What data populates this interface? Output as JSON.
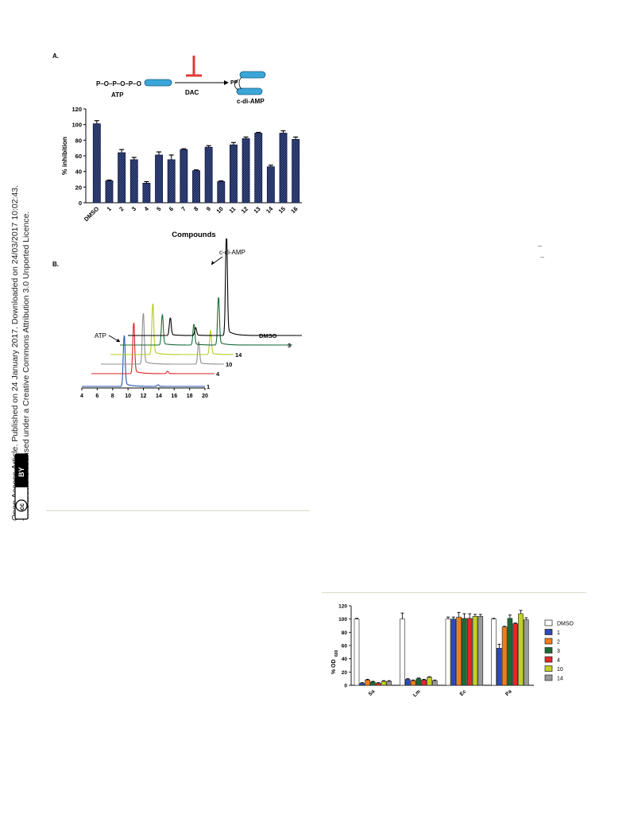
{
  "sidebar": {
    "line1": "Open Access Article. Published on 24 January 2017. Downloaded on 24/03/2017 10:02:43.",
    "line2": "This article is licensed under a Creative Commons Attribution 3.0 Unported Licence.",
    "badge_cc": "cc",
    "badge_by": "BY"
  },
  "scheme": {
    "panel_label": "A.",
    "substrate_chain": "P–O–P–O–P–O",
    "substrate": "ATP",
    "enzyme": "DAC",
    "product_pp": "PP",
    "product": "c-di-AMP"
  },
  "chart_data": [
    {
      "type": "bar",
      "ylabel": "% inhibition",
      "xlabel": "Compounds",
      "ylim": [
        0,
        120
      ],
      "yticks": [
        0,
        20,
        40,
        60,
        80,
        100,
        120
      ],
      "grid": false,
      "categories": [
        "DMSO",
        "1",
        "2",
        "3",
        "4",
        "5",
        "6",
        "7",
        "8",
        "9",
        "10",
        "11",
        "12",
        "13",
        "14",
        "15",
        "16"
      ],
      "values": [
        101,
        28,
        64,
        55,
        25,
        61,
        55,
        68,
        41,
        71,
        27,
        74,
        82,
        89,
        46,
        89,
        81
      ],
      "errors": [
        4,
        1,
        4,
        3,
        2,
        4,
        6,
        1,
        1,
        2,
        1,
        3,
        2,
        1,
        2,
        3,
        3
      ],
      "color": "#1c2a5c"
    },
    {
      "type": "line",
      "panel_label": "B.",
      "xticks": [
        4,
        6,
        8,
        10,
        12,
        14,
        16,
        18,
        20
      ],
      "xlim": [
        4,
        20
      ],
      "annotations": {
        "atp": "ATP",
        "cdiamp": "c-di-AMP"
      },
      "series": [
        {
          "name": "1",
          "color": "#2a55b0",
          "offset": [
            0,
            0
          ],
          "peaks": [
            [
              9.5,
              64
            ],
            [
              13.9,
              2
            ]
          ]
        },
        {
          "name": "4",
          "color": "#e02020",
          "offset": [
            12,
            16
          ],
          "peaks": [
            [
              9.5,
              64
            ],
            [
              13.9,
              3
            ]
          ]
        },
        {
          "name": "10",
          "color": "#909090",
          "offset": [
            24,
            28
          ],
          "peaks": [
            [
              9.5,
              64
            ],
            [
              16.7,
              28
            ]
          ]
        },
        {
          "name": "14",
          "color": "#b8cc20",
          "offset": [
            36,
            40
          ],
          "peaks": [
            [
              9.5,
              64
            ],
            [
              17.0,
              30
            ]
          ]
        },
        {
          "name": "3",
          "color": "#1a6b3a",
          "offset": [
            48,
            52
          ],
          "peaks": [
            [
              9.5,
              38
            ],
            [
              13.6,
              26
            ],
            [
              16.8,
              60
            ]
          ]
        },
        {
          "name": "DMSO",
          "color": "#000000",
          "offset": [
            58,
            64
          ],
          "peaks": [
            [
              9.5,
              22
            ],
            [
              12.8,
              10
            ],
            [
              16.8,
              126
            ]
          ]
        }
      ]
    },
    {
      "type": "bar",
      "ylabel_main": "% OD",
      "ylabel_sub": "600",
      "ylim": [
        0,
        120
      ],
      "yticks": [
        0,
        20,
        40,
        60,
        80,
        100,
        120
      ],
      "grid": false,
      "legend_position": "right",
      "categories": [
        "Sa",
        "Lm",
        "Ec",
        "Pa"
      ],
      "series": [
        {
          "name": "DMSO",
          "color": "#ffffff",
          "values": [
            100,
            100,
            100,
            100
          ],
          "errors": [
            1,
            9,
            3,
            1
          ]
        },
        {
          "name": "1",
          "color": "#2d4bb8",
          "values": [
            3,
            9,
            100,
            56
          ],
          "errors": [
            1,
            1,
            3,
            6
          ]
        },
        {
          "name": "2",
          "color": "#f07c1a",
          "values": [
            8,
            7,
            103,
            88
          ],
          "errors": [
            1,
            1,
            7,
            1
          ]
        },
        {
          "name": "3",
          "color": "#1b6b36",
          "values": [
            5,
            10,
            101,
            101
          ],
          "errors": [
            1,
            1,
            7,
            5
          ]
        },
        {
          "name": "4",
          "color": "#e42626",
          "values": [
            3,
            8,
            101,
            93
          ],
          "errors": [
            1,
            1,
            7,
            1
          ]
        },
        {
          "name": "10",
          "color": "#c2d121",
          "values": [
            6,
            12,
            104,
            108
          ],
          "errors": [
            1,
            1,
            3,
            5
          ]
        },
        {
          "name": "14",
          "color": "#9a9a9a",
          "values": [
            6,
            7,
            104,
            99
          ],
          "errors": [
            1,
            1,
            3,
            3
          ]
        }
      ]
    }
  ]
}
